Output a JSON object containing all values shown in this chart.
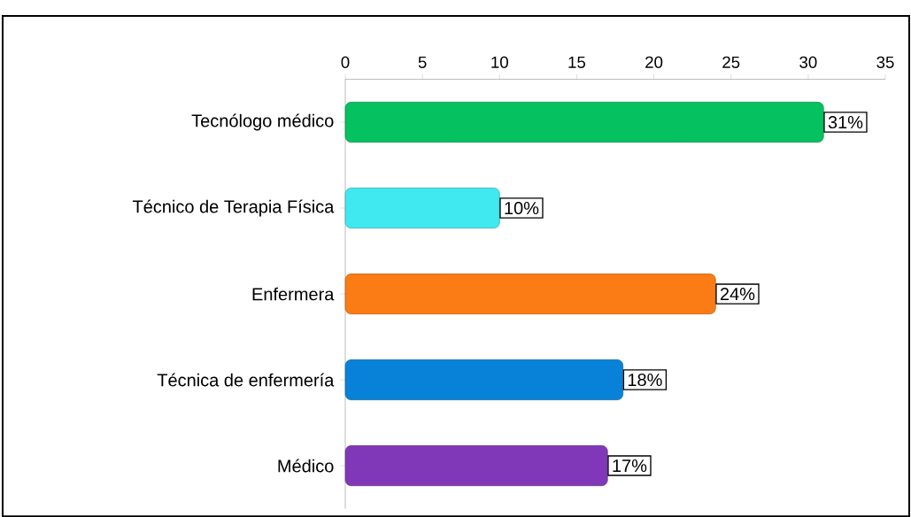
{
  "chart_data": {
    "type": "bar",
    "orientation": "horizontal",
    "categories": [
      "Tecnólogo médico",
      "Técnico de Terapia Física",
      "Enfermera",
      "Técnica de enfermería",
      "Médico"
    ],
    "values": [
      31,
      10,
      24,
      18,
      17
    ],
    "colors": [
      "#05c160",
      "#40e8f0",
      "#fb7b14",
      "#0882d8",
      "#8038b8"
    ],
    "value_labels": [
      "31%",
      "10%",
      "24%",
      "18%",
      "17%"
    ],
    "xlim": [
      0,
      35
    ],
    "xticks": [
      0,
      5,
      10,
      15,
      20,
      25,
      30,
      35
    ]
  }
}
